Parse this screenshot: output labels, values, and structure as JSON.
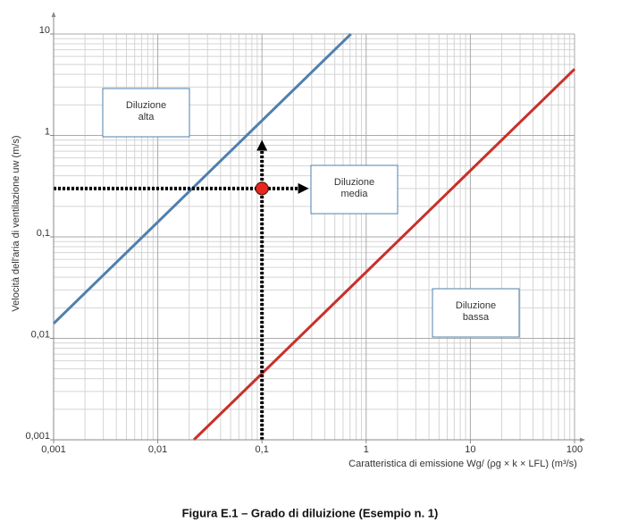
{
  "chart_data": {
    "type": "line",
    "log_x": true,
    "log_y": true,
    "grid": true,
    "minor_grid": true,
    "title": "Figura E.1 – Grado di diluizione (Esempio n. 1)",
    "xlabel": "Caratteristica di emissione  Wg/ (ρg × k × LFL)  (m³/s)",
    "ylabel": "Velocità dell'aria di ventilazione uw (m/s)",
    "xlim": [
      0.001,
      100
    ],
    "ylim": [
      0.001,
      10
    ],
    "xticks": [
      {
        "value": 0.001,
        "label": "0,001"
      },
      {
        "value": 0.01,
        "label": "0,01"
      },
      {
        "value": 0.1,
        "label": "0,1"
      },
      1,
      10,
      100
    ],
    "yticks": [
      {
        "value": 0.001,
        "label": "0,001"
      },
      {
        "value": 0.01,
        "label": "0,01"
      },
      {
        "value": 0.1,
        "label": "0,1"
      },
      1,
      10
    ],
    "series": [
      {
        "color": "#4f7fae",
        "x": [
          0.001,
          0.714
        ],
        "values": [
          0.014,
          10
        ]
      },
      {
        "color": "#c8302a",
        "x": [
          0.0222,
          100
        ],
        "values": [
          0.001,
          4.5
        ]
      }
    ],
    "point": {
      "x": 0.1,
      "y": 0.3,
      "color": "#e8261e"
    },
    "arrows": [
      {
        "x": [
          0.1,
          0.1
        ],
        "y": [
          0.001,
          0.8
        ]
      },
      {
        "x": [
          0.001,
          0.25
        ],
        "y": [
          0.3,
          0.3
        ]
      }
    ],
    "annotations": [
      {
        "lines": [
          "Diluzione",
          "alta"
        ]
      },
      {
        "lines": [
          "Diluzione",
          "media"
        ]
      },
      {
        "lines": [
          "Diluzione",
          "bassa"
        ]
      }
    ]
  }
}
